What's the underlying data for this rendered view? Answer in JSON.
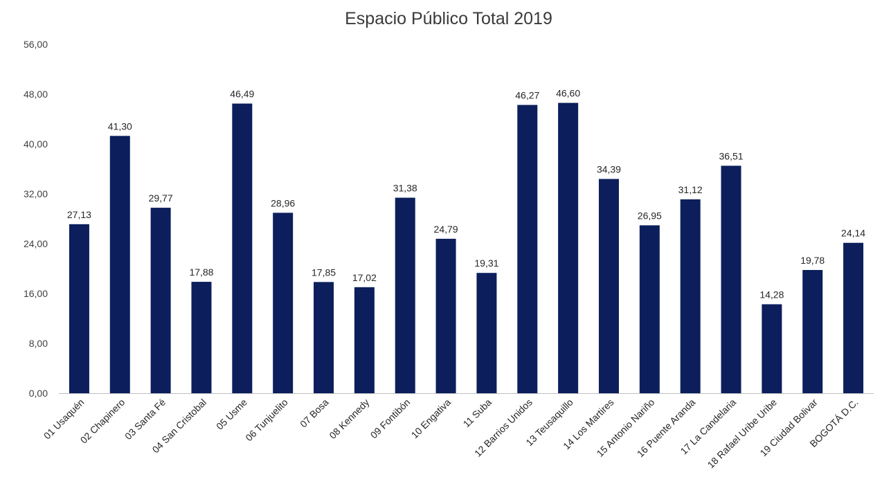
{
  "colors": {
    "bar": "#0c1f5c",
    "axis": "#bfbfbf"
  },
  "chart_data": {
    "type": "bar",
    "title": "Espacio Público Total 2019",
    "xlabel": "",
    "ylabel": "",
    "ylim": [
      0,
      56
    ],
    "yticks": [
      "0,00",
      "8,00",
      "16,00",
      "24,00",
      "32,00",
      "40,00",
      "48,00",
      "56,00"
    ],
    "grid": false,
    "legend": "none",
    "categories": [
      "01 Usaquén",
      "02 Chapinero",
      "03 Santa Fé",
      "04 San Cristobal",
      "05 Usme",
      "06 Tunjuelito",
      "07 Bosa",
      "08 Kennedy",
      "09 Fontibón",
      "10 Engativa",
      "11 Suba",
      "12 Barrios Unidos",
      "13 Teusaquillo",
      "14 Los Martires",
      "15 Antonio Nariño",
      "16 Puente Aranda",
      "17 La Candelaria",
      "18 Rafael Uribe Uribe",
      "19 Ciudad Bolivar",
      "BOGOTÁ D.C."
    ],
    "values": [
      27.13,
      41.3,
      29.77,
      17.88,
      46.49,
      28.96,
      17.85,
      17.02,
      31.38,
      24.79,
      19.31,
      46.27,
      46.6,
      34.39,
      26.95,
      31.12,
      36.51,
      14.28,
      19.78,
      24.14
    ],
    "data_labels": [
      "27,13",
      "41,30",
      "29,77",
      "17,88",
      "46,49",
      "28,96",
      "17,85",
      "17,02",
      "31,38",
      "24,79",
      "19,31",
      "46,27",
      "46,60",
      "34,39",
      "26,95",
      "31,12",
      "36,51",
      "14,28",
      "19,78",
      "24,14"
    ]
  }
}
